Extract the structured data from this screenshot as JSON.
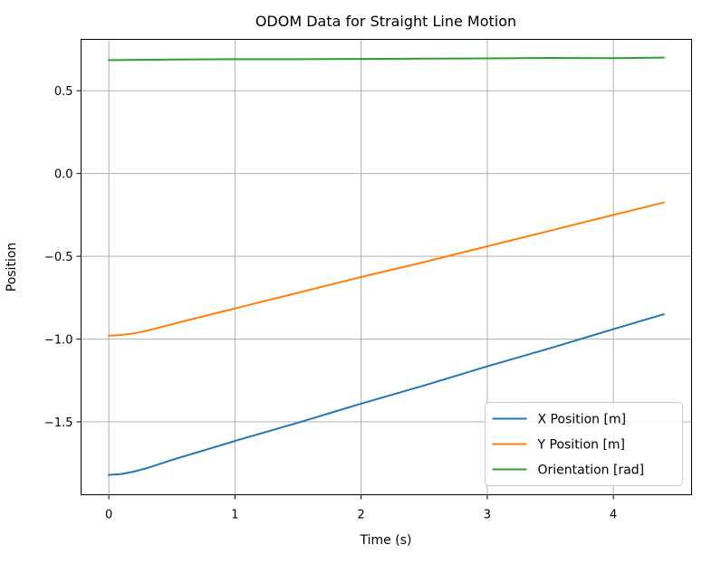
{
  "chart_data": {
    "type": "line",
    "title": "ODOM Data for Straight Line Motion",
    "xlabel": "Time (s)",
    "ylabel": "Position",
    "xlim": [
      -0.22,
      4.62
    ],
    "ylim": [
      -1.94,
      0.81
    ],
    "xticks": [
      0,
      1,
      2,
      3,
      4
    ],
    "xtick_labels": [
      "0",
      "1",
      "2",
      "3",
      "4"
    ],
    "yticks": [
      0.5,
      0.0,
      -0.5,
      -1.0,
      -1.5
    ],
    "ytick_labels": [
      "0.5",
      "0.0",
      "−0.5",
      "−1.0",
      "−1.5"
    ],
    "grid": true,
    "legend_position": "lower-right",
    "series": [
      {
        "name": "X Position [m]",
        "color": "#1f77b4",
        "x": [
          0,
          0.1,
          0.2,
          0.3,
          0.4,
          0.5,
          1.0,
          1.5,
          2.0,
          2.5,
          3.0,
          3.5,
          4.0,
          4.4
        ],
        "y": [
          -1.82,
          -1.815,
          -1.8,
          -1.78,
          -1.755,
          -1.73,
          -1.615,
          -1.505,
          -1.39,
          -1.28,
          -1.165,
          -1.055,
          -0.94,
          -0.85
        ]
      },
      {
        "name": "Y Position [m]",
        "color": "#ff7f0e",
        "x": [
          0,
          0.1,
          0.2,
          0.3,
          0.4,
          0.5,
          1.0,
          1.5,
          2.0,
          2.5,
          3.0,
          3.5,
          4.0,
          4.4
        ],
        "y": [
          -0.98,
          -0.975,
          -0.965,
          -0.95,
          -0.93,
          -0.91,
          -0.815,
          -0.72,
          -0.625,
          -0.535,
          -0.44,
          -0.345,
          -0.25,
          -0.175
        ]
      },
      {
        "name": "Orientation [rad]",
        "color": "#2ca02c",
        "x": [
          0,
          0.5,
          1.0,
          1.5,
          2.0,
          2.5,
          3.0,
          3.5,
          4.0,
          4.4
        ],
        "y": [
          0.685,
          0.688,
          0.69,
          0.69,
          0.692,
          0.694,
          0.695,
          0.698,
          0.697,
          0.7
        ]
      }
    ]
  }
}
